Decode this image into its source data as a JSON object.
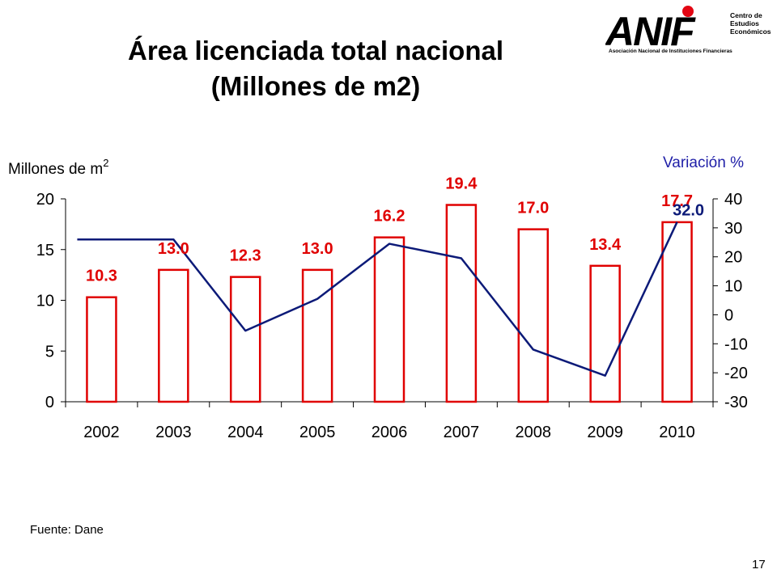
{
  "header": {
    "title_line1": "Área licenciada total nacional",
    "title_line2": "(Millones de m2)"
  },
  "logo": {
    "wordmark": "ANIF",
    "subtitle": "Asociación Nacional de Instituciones Financieras",
    "side_line1": "Centro de",
    "side_line2": "Estudios",
    "side_line3": "Económicos",
    "accent_color": "#e30613"
  },
  "footer": {
    "source": "Fuente: Dane",
    "page_number": "17"
  },
  "chart_data": {
    "type": "bar",
    "title": "Área licenciada total nacional (Millones de m2)",
    "categories": [
      "2002",
      "2003",
      "2004",
      "2005",
      "2006",
      "2007",
      "2008",
      "2009",
      "2010"
    ],
    "y_left": {
      "label": "Millones de m",
      "label_superscript": "2",
      "range": [
        0,
        20
      ],
      "ticks": [
        0,
        5,
        10,
        15,
        20
      ]
    },
    "y_right": {
      "label": "Variación %",
      "range": [
        -30,
        40
      ],
      "ticks": [
        -30,
        -20,
        -10,
        0,
        10,
        20,
        30,
        40
      ]
    },
    "series": [
      {
        "type": "bar",
        "axis": "left",
        "values": [
          10.3,
          13.0,
          12.3,
          13.0,
          16.2,
          19.4,
          17.0,
          13.4,
          17.7
        ],
        "labels": [
          "10.3",
          "13.0",
          "12.3",
          "13.0",
          "16.2",
          "19.4",
          "17.0",
          "13.4",
          "17.7"
        ],
        "color": "#e00000"
      },
      {
        "type": "line",
        "axis": "right",
        "values": [
          26.0,
          26.0,
          -5.5,
          5.5,
          24.5,
          19.5,
          -12.0,
          -21.0,
          32.0
        ],
        "labels": [
          "",
          "",
          "",
          "",
          "",
          "",
          "",
          "",
          "32.0"
        ],
        "color": "#0c1a78"
      }
    ],
    "grid": false,
    "legend": "none"
  }
}
